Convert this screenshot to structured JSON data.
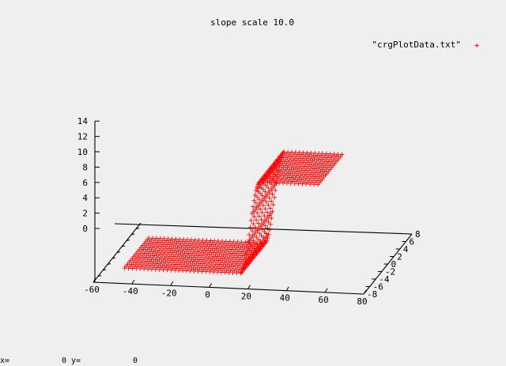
{
  "chart_data": {
    "type": "scatter",
    "title": "slope scale 10.0",
    "marker": "+",
    "series": [
      {
        "name": "\"crgPlotData.txt\"",
        "color": "#ff0000",
        "x_range": [
          -50,
          50
        ],
        "y_range": [
          -4,
          4
        ],
        "z_low": 0,
        "z_high": 12,
        "transition_x": [
          10,
          20
        ]
      }
    ],
    "x_ticks": [
      "-60",
      "-40",
      "-20",
      "0",
      "20",
      "40",
      "60",
      "80"
    ],
    "y_ticks": [
      "-8",
      "-6",
      "-4",
      "-2",
      "0",
      "2",
      "4",
      "6",
      "8"
    ],
    "z_ticks": [
      "0",
      "2",
      "4",
      "6",
      "8",
      "10",
      "12",
      "14"
    ],
    "xlim": [
      -60,
      80
    ],
    "ylim": [
      -8,
      8
    ],
    "zlim": [
      0,
      14
    ],
    "view": "3d-perspective",
    "grid": false,
    "legend_position": "top-right"
  },
  "status_bar": {
    "x_label": "x=",
    "x_value": "0",
    "y_label": "y=",
    "y_value": "0"
  }
}
